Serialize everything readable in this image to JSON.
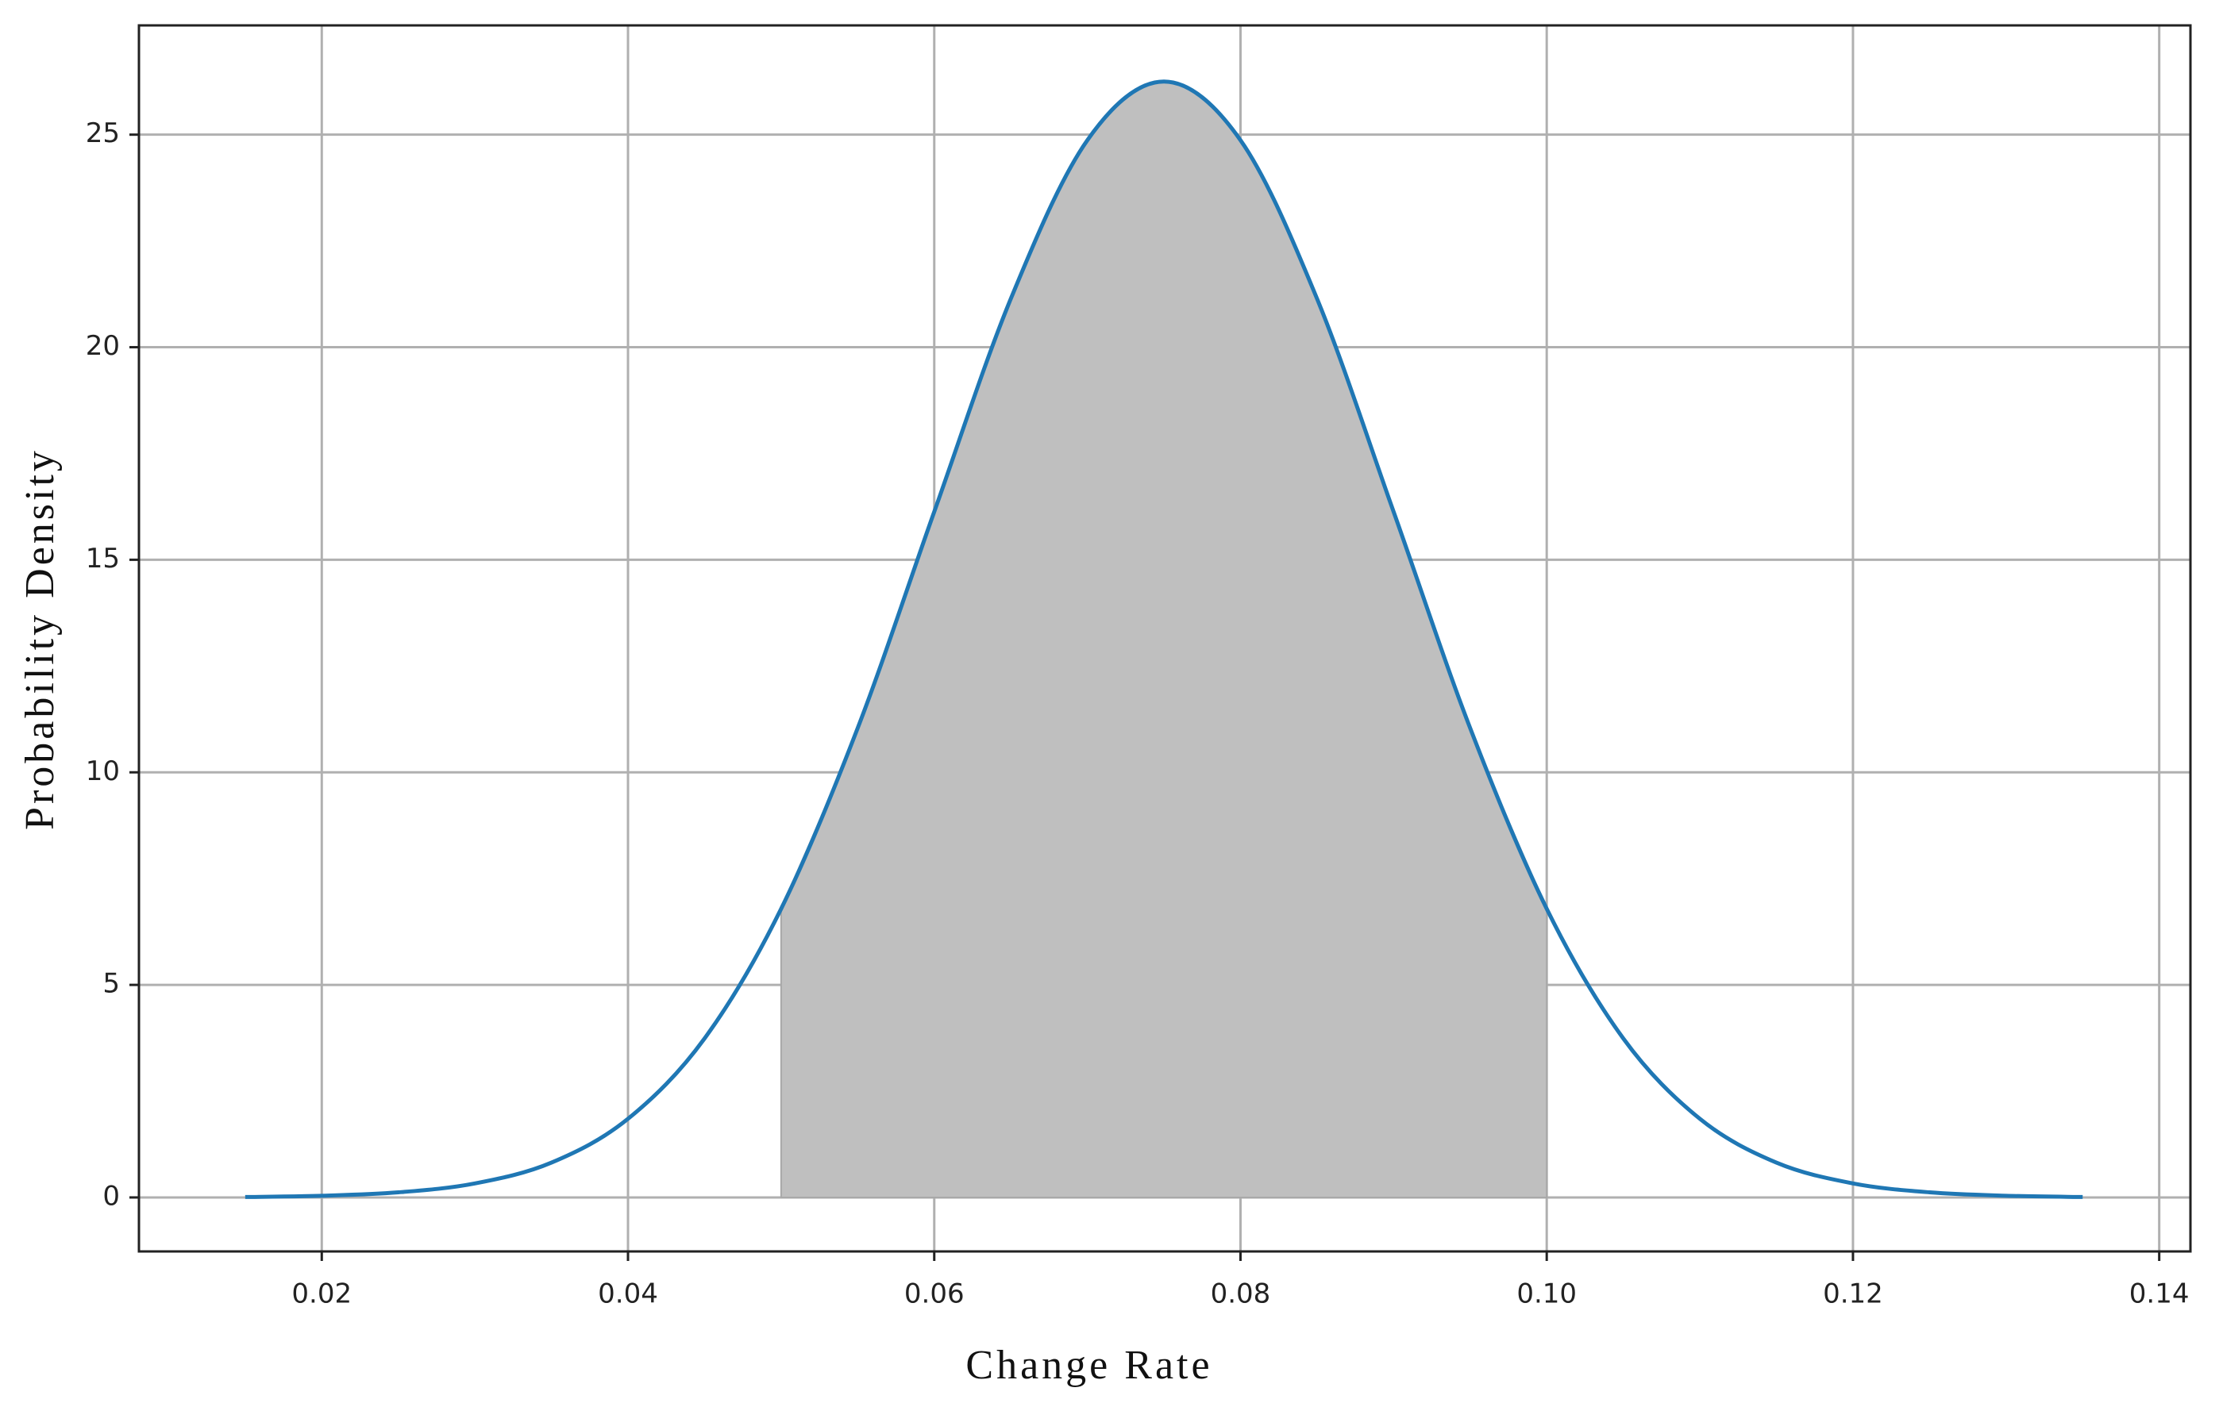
{
  "chart_data": {
    "type": "area-line",
    "xlabel": "Change Rate",
    "ylabel": "Probability Density",
    "x": [
      0.015,
      0.02,
      0.025,
      0.03,
      0.035,
      0.04,
      0.045,
      0.05,
      0.055,
      0.06,
      0.065,
      0.07,
      0.075,
      0.08,
      0.085,
      0.09,
      0.095,
      0.1,
      0.105,
      0.11,
      0.115,
      0.12,
      0.125,
      0.13,
      0.135
    ],
    "series": [
      {
        "color": "#1f77b4",
        "values": [
          0.01,
          0.04,
          0.12,
          0.33,
          0.82,
          1.85,
          3.74,
          6.79,
          11.04,
          16.13,
          21.14,
          24.87,
          26.25,
          24.87,
          21.14,
          16.13,
          11.04,
          6.79,
          3.74,
          1.85,
          0.82,
          0.33,
          0.12,
          0.04,
          0.01
        ]
      }
    ],
    "shade": {
      "range": [
        0.05,
        0.1
      ],
      "color": "#bfbfbf"
    },
    "xlim": [
      0.00806,
      0.14204
    ],
    "xticks": [
      0.02,
      0.04,
      0.06,
      0.08,
      {
        "value": 0.1,
        "label": "0.10"
      },
      0.12,
      0.14
    ],
    "ylim": [
      -1.27,
      27.57
    ],
    "yticks": [
      0,
      5,
      10,
      15,
      20,
      25
    ],
    "grid": true
  }
}
